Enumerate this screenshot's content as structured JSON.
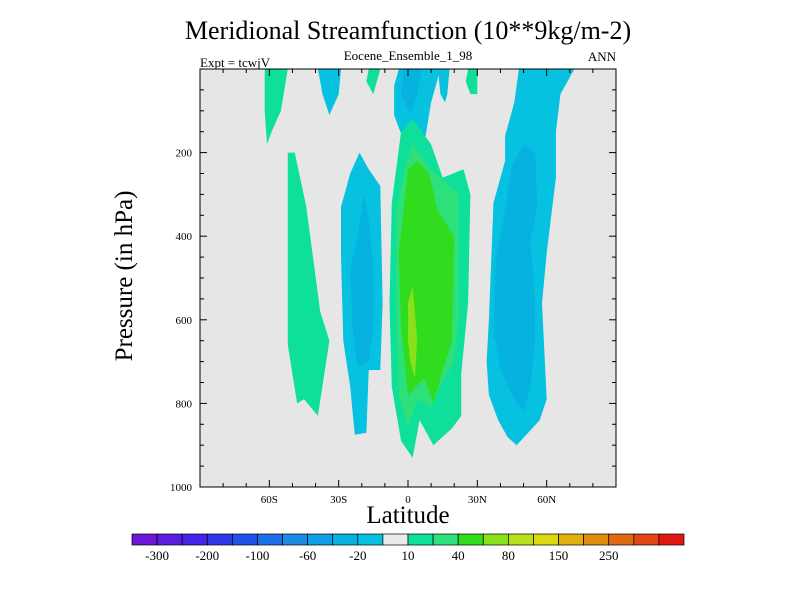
{
  "header": {
    "title": "Meridional Streamfunction (10**9kg/m-2)",
    "subtitle": "Eocene_Ensemble_1_98",
    "left_label": "Expt = tcwjV",
    "right_label": "ANN"
  },
  "chart_data": {
    "type": "contour",
    "title": "Meridional Streamfunction (10**9kg/m-2)",
    "subtitle": "Eocene_Ensemble_1_98",
    "xlabel": "Latitude",
    "ylabel": "Pressure (in hPa)",
    "xlim": [
      -90,
      90
    ],
    "ylim": [
      1000,
      0
    ],
    "x_ticks": [
      -60,
      -30,
      0,
      30,
      60
    ],
    "x_tick_labels": [
      "60S",
      "30S",
      "0",
      "30N",
      "60N"
    ],
    "y_ticks": [
      200,
      400,
      600,
      800,
      1000
    ],
    "y_tick_labels": [
      "200",
      "400",
      "600",
      "800",
      "1000"
    ],
    "background_color": "#e6e6e6",
    "levels": [
      {
        "range": "<-300",
        "color": "#6d16d8"
      },
      {
        "range": "-300..-250",
        "color": "#5a1ee0"
      },
      {
        "range": "-250..-200",
        "color": "#4424e8"
      },
      {
        "range": "-200..-150",
        "color": "#2e38e8"
      },
      {
        "range": "-150..-100",
        "color": "#1f52e8"
      },
      {
        "range": "-100..-80",
        "color": "#1c6fe8"
      },
      {
        "range": "-80..-60",
        "color": "#1d8ae6"
      },
      {
        "range": "-60..-40",
        "color": "#0f9fe6"
      },
      {
        "range": "-40..-20",
        "color": "#06b2e0"
      },
      {
        "range": "-20..-10",
        "color": "#06c2e0"
      },
      {
        "range": "-10..10",
        "color": "#eaeaea"
      },
      {
        "range": "10..20",
        "color": "#0ee09c"
      },
      {
        "range": "20..40",
        "color": "#2ee07a"
      },
      {
        "range": "40..60",
        "color": "#31dc1e"
      },
      {
        "range": "60..80",
        "color": "#8ae01a"
      },
      {
        "range": "80..100",
        "color": "#b9e01a"
      },
      {
        "range": "100..150",
        "color": "#dcd812"
      },
      {
        "range": "150..200",
        "color": "#e0b010"
      },
      {
        "range": "200..250",
        "color": "#e08d10"
      },
      {
        "range": "250..300",
        "color": "#e06a12"
      },
      {
        "range": "300..350",
        "color": "#e04614"
      },
      {
        "range": ">350",
        "color": "#e01814"
      }
    ],
    "colorbar_labels": [
      {
        "text": "-300",
        "box": 1
      },
      {
        "text": "-200",
        "box": 3
      },
      {
        "text": "-100",
        "box": 5
      },
      {
        "text": "-60",
        "box": 7
      },
      {
        "text": "-20",
        "box": 9
      },
      {
        "text": "10",
        "box": 11
      },
      {
        "text": "40",
        "box": 13
      },
      {
        "text": "80",
        "box": 15
      },
      {
        "text": "150",
        "box": 17
      },
      {
        "text": "250",
        "box": 19
      }
    ],
    "regions": [
      {
        "level": 11,
        "points": [
          [
            -62,
            0
          ],
          [
            -52,
            0
          ],
          [
            -55,
            100
          ],
          [
            -59,
            150
          ],
          [
            -61,
            180
          ],
          [
            -62,
            100
          ]
        ]
      },
      {
        "level": 9,
        "points": [
          [
            -39,
            0
          ],
          [
            -29,
            0
          ],
          [
            -30,
            60
          ],
          [
            -34,
            110
          ],
          [
            -37,
            60
          ]
        ]
      },
      {
        "level": 11,
        "points": [
          [
            -17,
            0
          ],
          [
            -12,
            0
          ],
          [
            -15,
            60
          ],
          [
            -18,
            30
          ]
        ]
      },
      {
        "level": 9,
        "points": [
          [
            -4,
            0
          ],
          [
            14,
            0
          ],
          [
            10,
            80
          ],
          [
            7,
            180
          ],
          [
            -2,
            170
          ],
          [
            -6,
            110
          ],
          [
            -6,
            40
          ]
        ]
      },
      {
        "level": 8,
        "points": [
          [
            -2,
            0
          ],
          [
            6,
            0
          ],
          [
            4,
            60
          ],
          [
            1,
            110
          ],
          [
            -3,
            60
          ]
        ]
      },
      {
        "level": 9,
        "points": [
          [
            13,
            0
          ],
          [
            18,
            0
          ],
          [
            17,
            60
          ],
          [
            16,
            80
          ],
          [
            14,
            60
          ]
        ]
      },
      {
        "level": 11,
        "points": [
          [
            26,
            0
          ],
          [
            30,
            0
          ],
          [
            30,
            60
          ],
          [
            27,
            60
          ],
          [
            25,
            30
          ]
        ]
      },
      {
        "level": 11,
        "points": [
          [
            -52,
            200
          ],
          [
            -49,
            200
          ],
          [
            -44,
            330
          ],
          [
            -38,
            580
          ],
          [
            -34,
            650
          ],
          [
            -39,
            830
          ],
          [
            -45,
            790
          ],
          [
            -48,
            800
          ],
          [
            -52,
            660
          ],
          [
            -52,
            420
          ]
        ]
      },
      {
        "level": 9,
        "points": [
          [
            -29,
            330
          ],
          [
            -25,
            250
          ],
          [
            -21,
            200
          ],
          [
            -17,
            240
          ],
          [
            -12,
            280
          ],
          [
            -11,
            560
          ],
          [
            -12,
            720
          ],
          [
            -17,
            720
          ],
          [
            -18,
            870
          ],
          [
            -23,
            875
          ],
          [
            -25,
            760
          ],
          [
            -28,
            650
          ],
          [
            -29,
            450
          ]
        ]
      },
      {
        "level": 8,
        "points": [
          [
            -25,
            480
          ],
          [
            -22,
            400
          ],
          [
            -19,
            300
          ],
          [
            -17,
            360
          ],
          [
            -15,
            460
          ],
          [
            -15,
            630
          ],
          [
            -17,
            700
          ],
          [
            -22,
            710
          ],
          [
            -24,
            620
          ]
        ]
      },
      {
        "level": 11,
        "points": [
          [
            -7,
            320
          ],
          [
            -3,
            150
          ],
          [
            2,
            120
          ],
          [
            10,
            180
          ],
          [
            15,
            260
          ],
          [
            24,
            240
          ],
          [
            27,
            300
          ],
          [
            26,
            560
          ],
          [
            23,
            730
          ],
          [
            23,
            830
          ],
          [
            19,
            860
          ],
          [
            15,
            880
          ],
          [
            11,
            900
          ],
          [
            5,
            840
          ],
          [
            2,
            930
          ],
          [
            -3,
            890
          ],
          [
            -7,
            760
          ],
          [
            -8,
            560
          ]
        ]
      },
      {
        "level": 12,
        "points": [
          [
            -5,
            340
          ],
          [
            -1,
            230
          ],
          [
            2,
            180
          ],
          [
            10,
            240
          ],
          [
            14,
            260
          ],
          [
            22,
            300
          ],
          [
            22,
            600
          ],
          [
            20,
            700
          ],
          [
            14,
            760
          ],
          [
            10,
            810
          ],
          [
            4,
            790
          ],
          [
            0,
            860
          ],
          [
            -4,
            780
          ],
          [
            -5,
            560
          ]
        ]
      },
      {
        "level": 13,
        "points": [
          [
            -4,
            440
          ],
          [
            0,
            240
          ],
          [
            4,
            220
          ],
          [
            9,
            250
          ],
          [
            13,
            340
          ],
          [
            20,
            400
          ],
          [
            19,
            650
          ],
          [
            15,
            720
          ],
          [
            11,
            800
          ],
          [
            7,
            740
          ],
          [
            0,
            780
          ],
          [
            -3,
            620
          ]
        ]
      },
      {
        "level": 14,
        "points": [
          [
            0,
            560
          ],
          [
            2,
            520
          ],
          [
            3,
            580
          ],
          [
            4,
            650
          ],
          [
            3,
            740
          ],
          [
            1,
            700
          ],
          [
            0,
            650
          ]
        ]
      },
      {
        "level": 9,
        "points": [
          [
            35,
            600
          ],
          [
            37,
            320
          ],
          [
            42,
            220
          ],
          [
            42,
            160
          ],
          [
            46,
            80
          ],
          [
            48,
            0
          ],
          [
            72,
            0
          ],
          [
            66,
            60
          ],
          [
            64,
            150
          ],
          [
            64,
            260
          ],
          [
            60,
            440
          ],
          [
            58,
            560
          ],
          [
            60,
            790
          ],
          [
            57,
            840
          ],
          [
            52,
            870
          ],
          [
            47,
            900
          ],
          [
            43,
            880
          ],
          [
            39,
            840
          ],
          [
            35,
            780
          ],
          [
            34,
            700
          ]
        ]
      },
      {
        "level": 8,
        "points": [
          [
            37,
            640
          ],
          [
            38,
            450
          ],
          [
            41,
            370
          ],
          [
            45,
            230
          ],
          [
            50,
            180
          ],
          [
            55,
            200
          ],
          [
            56,
            330
          ],
          [
            53,
            410
          ],
          [
            55,
            560
          ],
          [
            55,
            650
          ],
          [
            53,
            760
          ],
          [
            50,
            820
          ],
          [
            46,
            790
          ],
          [
            40,
            720
          ],
          [
            38,
            650
          ]
        ]
      }
    ]
  }
}
